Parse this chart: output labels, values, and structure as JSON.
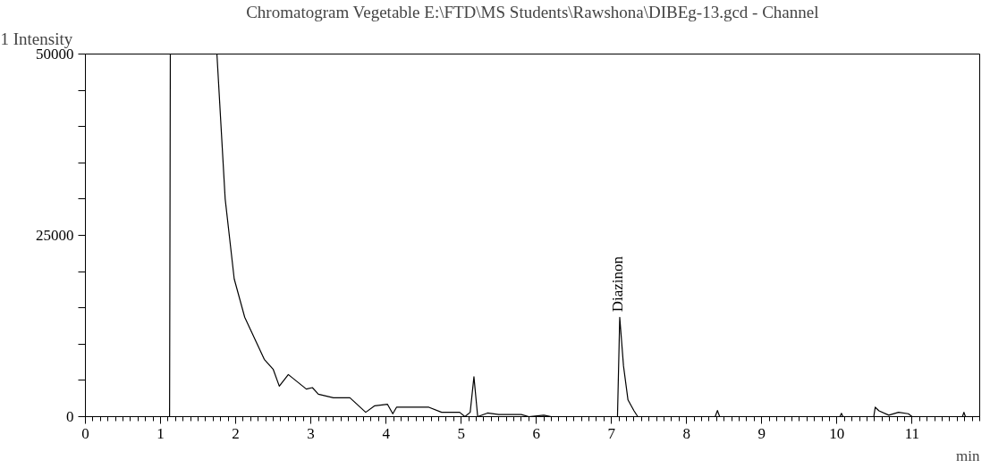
{
  "chart_data": {
    "type": "line",
    "title": "Chromatogram Vegetable E:\\FTD\\MS Students\\Rawshona\\DIBEg-13.gcd - Channel",
    "ylabel": "1 Intensity",
    "xlabel": "min",
    "x": [
      0,
      1.12,
      1.13,
      1.4,
      1.75,
      1.86,
      1.98,
      2.12,
      2.38,
      2.5,
      2.58,
      2.7,
      2.94,
      3.02,
      3.1,
      3.3,
      3.52,
      3.73,
      3.85,
      4.02,
      4.09,
      4.14,
      4.57,
      4.74,
      4.98,
      5.05,
      5.12,
      5.17,
      5.22,
      5.35,
      5.5,
      5.7,
      5.8,
      5.9,
      6.1,
      6.2,
      7.08,
      7.11,
      7.16,
      7.22,
      7.3,
      7.35,
      8.38,
      8.41,
      8.44,
      10.04,
      10.06,
      10.08,
      10.49,
      10.51,
      10.56,
      10.69,
      10.82,
      10.95,
      11.0,
      11.67,
      11.69,
      11.71,
      11.9
    ],
    "series": [
      {
        "color": "#000000",
        "values": [
          0,
          0,
          50000,
          null,
          50000,
          30000,
          19000,
          13700,
          7900,
          6500,
          4200,
          5800,
          3800,
          4000,
          3100,
          2600,
          2600,
          600,
          1500,
          1700,
          400,
          1300,
          1300,
          600,
          600,
          0,
          600,
          5500,
          0,
          500,
          300,
          300,
          300,
          0,
          200,
          0,
          0,
          13700,
          7000,
          2300,
          800,
          0,
          0,
          850,
          0,
          0,
          450,
          0,
          0,
          1300,
          800,
          200,
          600,
          400,
          0,
          0,
          600,
          0,
          0
        ]
      }
    ],
    "annotations": [
      {
        "text": "Diazinon",
        "x": 7.11,
        "y": 13700
      }
    ],
    "xlim": [
      0,
      11.9
    ],
    "ylim": [
      0,
      50000
    ],
    "xticks": [
      0,
      1,
      2,
      3,
      4,
      5,
      6,
      7,
      8,
      9,
      10,
      11
    ],
    "yticks": [
      0,
      {
        "value": 5000,
        "label": null
      },
      {
        "value": 10000,
        "label": null
      },
      {
        "value": 15000,
        "label": null
      },
      {
        "value": 20000,
        "label": null
      },
      25000,
      {
        "value": 30000,
        "label": null
      },
      {
        "value": 35000,
        "label": null
      },
      {
        "value": 40000,
        "label": null
      },
      {
        "value": 45000,
        "label": null
      },
      50000
    ],
    "grid": false,
    "marker": "none",
    "line_style": "solid"
  }
}
